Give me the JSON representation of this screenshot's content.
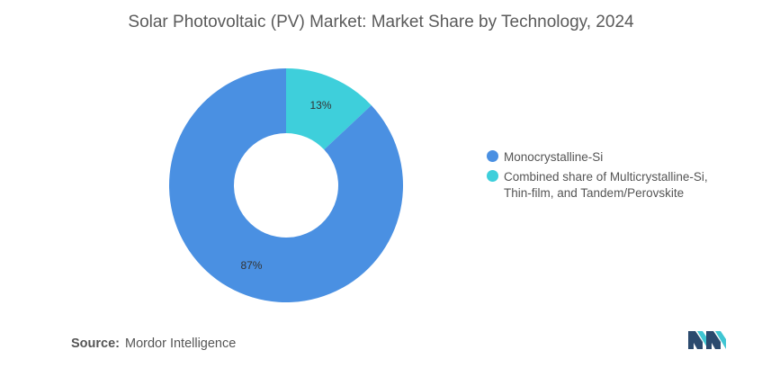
{
  "title": "Solar Photovoltaic (PV) Market: Market Share by Technology, 2024",
  "source": {
    "label": "Source:",
    "value": "Mordor Intelligence"
  },
  "logo": {
    "name": "mordor-intelligence-logo",
    "colors": [
      "#2b4a6e",
      "#3fc6d3"
    ]
  },
  "colors": {
    "Monocrystalline-Si": "#4a90e2",
    "Combined share": "#3ecfdb"
  },
  "chart_data": {
    "type": "pie",
    "variant": "donut",
    "start_angle_deg": 0,
    "direction": "clockwise",
    "slices": [
      {
        "label": "Combined share of Multicrystalline-Si, Thin-film, and Tandem/Perovskite",
        "value": 13,
        "display": "13%",
        "color": "#3ecfdb"
      },
      {
        "label": "Monocrystalline-Si",
        "value": 87,
        "display": "87%",
        "color": "#4a90e2"
      }
    ],
    "legend": [
      {
        "label": "Monocrystalline-Si",
        "color": "#4a90e2"
      },
      {
        "label": "Combined share of Multicrystalline-Si, Thin-film, and Tandem/Perovskite",
        "color": "#3ecfdb"
      }
    ],
    "legend_position": "right"
  }
}
